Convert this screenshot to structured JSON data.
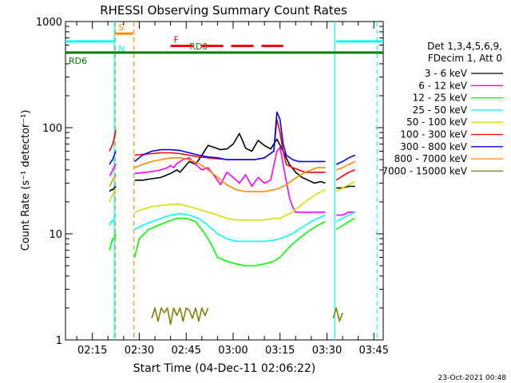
{
  "chart_data": {
    "type": "line",
    "title": "RHESSI Observing Summary Count Rates",
    "xlabel": "Start Time (04-Dec-11 02:06:22)",
    "ylabel": "Count Rate (s⁻¹ detector⁻¹)",
    "yscale": "log",
    "ylim": [
      1,
      1000
    ],
    "xlim_minutes": [
      6.4,
      108
    ],
    "x_ticks": [
      {
        "m": 15,
        "label": "02:15"
      },
      {
        "m": 30,
        "label": "02:30"
      },
      {
        "m": 45,
        "label": "02:45"
      },
      {
        "m": 60,
        "label": "03:00"
      },
      {
        "m": 75,
        "label": "03:15"
      },
      {
        "m": 90,
        "label": "03:30"
      },
      {
        "m": 105,
        "label": "03:45"
      }
    ],
    "y_ticks": [
      {
        "v": 1,
        "label": "1"
      },
      {
        "v": 10,
        "label": "10"
      },
      {
        "v": 100,
        "label": "100"
      },
      {
        "v": 1000,
        "label": "1000"
      }
    ],
    "legend": {
      "header": [
        "Det 1,3,4,5,6,9,",
        "FDecim 1, Att 0"
      ],
      "placement": "right"
    },
    "series": [
      {
        "name": "3 - 6 keV",
        "color": "#000000",
        "segments": [
          {
            "x": [
              20.5,
              21,
              21.5,
              22,
              22.5
            ],
            "y": [
              25,
              26,
              26,
              27,
              28
            ]
          },
          {
            "x": [
              28.5,
              31,
              34,
              37,
              40,
              42,
              43,
              44,
              46,
              48,
              50,
              52,
              54,
              56,
              58,
              60,
              62,
              63,
              64,
              66,
              68,
              70,
              72,
              74,
              76,
              78,
              80,
              82,
              84,
              86,
              88,
              89.5
            ],
            "y": [
              32,
              32,
              33,
              34,
              37,
              40,
              38,
              41,
              48,
              45,
              55,
              68,
              65,
              62,
              63,
              70,
              88,
              76,
              64,
              60,
              76,
              68,
              63,
              78,
              60,
              45,
              38,
              34,
              32,
              30,
              31,
              30
            ]
          },
          {
            "x": [
              93,
              95,
              97,
              99
            ],
            "y": [
              27,
              27,
              28,
              28
            ]
          }
        ]
      },
      {
        "name": "6 - 12 keV",
        "color": "#ff00ff",
        "segments": [
          {
            "x": [
              20.5,
              21,
              21.5,
              22,
              22.5
            ],
            "y": [
              35,
              37,
              40,
              43,
              46
            ]
          },
          {
            "x": [
              28.5,
              32,
              35,
              37,
              39,
              40,
              41,
              42,
              44,
              46,
              48,
              50,
              52,
              54,
              56,
              58,
              60,
              62,
              64,
              66,
              68,
              70,
              72,
              74,
              75,
              76,
              78,
              79,
              80,
              82,
              84,
              86,
              88,
              89.5
            ],
            "y": [
              37,
              38,
              39,
              40,
              42,
              44,
              42,
              46,
              50,
              52,
              45,
              40,
              42,
              35,
              29,
              38,
              34,
              30,
              36,
              28,
              34,
              30,
              32,
              60,
              65,
              45,
              22,
              18,
              16,
              16,
              16,
              16,
              16,
              16
            ]
          },
          {
            "x": [
              93,
              95,
              97,
              99
            ],
            "y": [
              15,
              15,
              16,
              16
            ]
          }
        ]
      },
      {
        "name": "12 - 25 keV",
        "color": "#00ff00",
        "segments": [
          {
            "x": [
              20.5,
              21,
              21.5,
              22,
              22.5
            ],
            "y": [
              7,
              8,
              9,
              9,
              10
            ]
          },
          {
            "x": [
              28.5,
              30,
              33,
              36,
              39,
              42,
              45,
              48,
              51,
              53,
              55,
              58,
              61,
              64,
              67,
              70,
              73,
              75,
              77,
              79,
              81,
              83,
              85,
              87,
              89.5
            ],
            "y": [
              6,
              9,
              11,
              12,
              13,
              14,
              14,
              13,
              10,
              8,
              6,
              5.5,
              5.2,
              5,
              5,
              5.2,
              5.5,
              6,
              7,
              8,
              9,
              10,
              11,
              12,
              13
            ]
          },
          {
            "x": [
              93,
              95,
              97,
              99
            ],
            "y": [
              11,
              12,
              13,
              14
            ]
          }
        ]
      },
      {
        "name": "25 - 50 keV",
        "color": "#00ffff",
        "segments": [
          {
            "x": [
              20.5,
              21,
              21.5,
              22,
              22.5
            ],
            "y": [
              12,
              13,
              13,
              14,
              15
            ]
          },
          {
            "x": [
              28.5,
              31,
              34,
              37,
              40,
              43,
              46,
              49,
              52,
              55,
              58,
              61,
              64,
              67,
              70,
              73,
              75,
              77,
              79,
              81,
              83,
              85,
              87,
              89.5
            ],
            "y": [
              11,
              12,
              13,
              14,
              15,
              15.5,
              15,
              14,
              12,
              10,
              9,
              8.5,
              8.5,
              8.5,
              8.5,
              8.7,
              9,
              9.5,
              10,
              11,
              12,
              13,
              14,
              15
            ]
          },
          {
            "x": [
              93,
              95,
              97,
              99
            ],
            "y": [
              13,
              14,
              15,
              16
            ]
          }
        ]
      },
      {
        "name": "50 - 100 keV",
        "color": "#dcdc00",
        "segments": [
          {
            "x": [
              20.5,
              21,
              21.5,
              22,
              22.5
            ],
            "y": [
              20,
              22,
              23,
              25,
              27
            ]
          },
          {
            "x": [
              28.5,
              31,
              34,
              37,
              40,
              43,
              46,
              49,
              52,
              55,
              58,
              61,
              64,
              67,
              70,
              73,
              75,
              77,
              79,
              81,
              83,
              85,
              87,
              89.5
            ],
            "y": [
              16,
              17,
              18,
              18.5,
              19,
              19,
              18,
              17,
              16,
              15,
              14,
              13.5,
              13.5,
              13.5,
              13.5,
              14,
              14,
              15,
              16,
              18,
              20,
              22,
              24,
              26
            ]
          },
          {
            "x": [
              93,
              95,
              97,
              99
            ],
            "y": [
              25,
              27,
              29,
              31
            ]
          }
        ]
      },
      {
        "name": "100 - 300 keV",
        "color": "#ff0000",
        "segments": [
          {
            "x": [
              20.5,
              21,
              21.5,
              22,
              22.5
            ],
            "y": [
              60,
              65,
              70,
              80,
              95
            ]
          },
          {
            "x": [
              28.5,
              31,
              34,
              37,
              40,
              43,
              46,
              49,
              52,
              55,
              58,
              61,
              64,
              67,
              70,
              73,
              74,
              75,
              76,
              77,
              79,
              81,
              83,
              85,
              87,
              89.5
            ],
            "y": [
              55,
              56,
              57,
              58,
              58,
              57,
              55,
              53,
              52,
              51,
              50,
              50,
              50,
              50,
              52,
              60,
              120,
              90,
              60,
              45,
              42,
              40,
              38,
              38,
              38,
              38
            ]
          },
          {
            "x": [
              93,
              95,
              97,
              99
            ],
            "y": [
              32,
              35,
              38,
              40
            ]
          }
        ]
      },
      {
        "name": "300 - 800 keV",
        "color": "#0000ff",
        "segments": [
          {
            "x": [
              20.5,
              21,
              21.5,
              22,
              22.5
            ],
            "y": [
              45,
              48,
              50,
              55,
              60
            ]
          },
          {
            "x": [
              28.5,
              31,
              34,
              37,
              40,
              43,
              46,
              49,
              52,
              55,
              58,
              61,
              64,
              67,
              70,
              73,
              74,
              75,
              76,
              77,
              79,
              81,
              83,
              85,
              87,
              89.5
            ],
            "y": [
              48,
              55,
              60,
              62,
              62,
              61,
              58,
              55,
              53,
              52,
              50,
              50,
              50,
              50,
              52,
              60,
              140,
              120,
              70,
              55,
              50,
              48,
              48,
              48,
              48,
              48
            ]
          },
          {
            "x": [
              93,
              95,
              97,
              99
            ],
            "y": [
              45,
              48,
              52,
              55
            ]
          }
        ]
      },
      {
        "name": "800 - 7000 keV",
        "color": "#ff8c00",
        "segments": [
          {
            "x": [
              20.5,
              21,
              21.5,
              22,
              22.5
            ],
            "y": [
              28,
              30,
              32,
              34,
              36
            ]
          },
          {
            "x": [
              28.5,
              31,
              34,
              37,
              40,
              43,
              46,
              49,
              52,
              55,
              58,
              61,
              64,
              67,
              70,
              73,
              75,
              77,
              79,
              81,
              83,
              85,
              87,
              89.5
            ],
            "y": [
              42,
              45,
              48,
              50,
              52,
              52,
              50,
              46,
              40,
              34,
              29,
              26,
              25,
              25,
              25,
              26,
              27,
              29,
              32,
              35,
              38,
              40,
              42,
              42
            ]
          },
          {
            "x": [
              93,
              95,
              97,
              99
            ],
            "y": [
              40,
              42,
              45,
              48
            ]
          }
        ]
      },
      {
        "name": "7000 - 15000 keV",
        "color": "#808000",
        "segments": [
          {
            "x": [
              34,
              35,
              36,
              37,
              38,
              39,
              40,
              41,
              42,
              43,
              44,
              45,
              46,
              47,
              48,
              49,
              50,
              51,
              52
            ],
            "y": [
              1.6,
              2,
              1.5,
              2,
              1.8,
              2,
              1.4,
              2,
              1.7,
              2,
              1.5,
              2,
              1.9,
              1.6,
              2,
              1.5,
              2,
              1.7,
              2
            ]
          },
          {
            "x": [
              92,
              93,
              94,
              95
            ],
            "y": [
              1.6,
              2,
              1.5,
              1.8
            ]
          }
        ]
      }
    ],
    "annotations": {
      "segments": [
        {
          "label": "",
          "color": "#00ffff",
          "dashed": false,
          "x1": 6.4,
          "x2": 22.3,
          "y": 650
        },
        {
          "label": "S",
          "color": "#ff8c00",
          "dashed": false,
          "x1": 22.3,
          "x2": 28,
          "y": 770
        },
        {
          "label": "N",
          "color": "#00ffff",
          "dashed": false,
          "x1": 22.3,
          "x2": 22.3,
          "y": 650
        },
        {
          "label": "",
          "color": "#00ffff",
          "dashed": false,
          "x1": 93,
          "x2": 108,
          "y": 650
        },
        {
          "label": "RD6",
          "color": "#008000",
          "dashed": false,
          "x1": 6.4,
          "x2": 45,
          "y": 510
        },
        {
          "label": "RD0",
          "color": "#008000",
          "dashed": false,
          "x1": 45,
          "x2": 108,
          "y": 510
        },
        {
          "label": "F",
          "color": "#ff0000",
          "dashed": true,
          "x1": 40,
          "x2": 76,
          "y": 590
        }
      ],
      "vlines": [
        {
          "x": 22.3,
          "color": "#ff8c00",
          "dashed": true
        },
        {
          "x": 28.3,
          "color": "#ff8c00",
          "dashed": true
        },
        {
          "x": 22.0,
          "color": "#00ffff",
          "dashed": false
        },
        {
          "x": 92.5,
          "color": "#00ffff",
          "dashed": false
        },
        {
          "x": 106.0,
          "color": "#00ffff",
          "dashed": true
        }
      ]
    },
    "footer_date": "23-Oct-2021 00:48"
  }
}
